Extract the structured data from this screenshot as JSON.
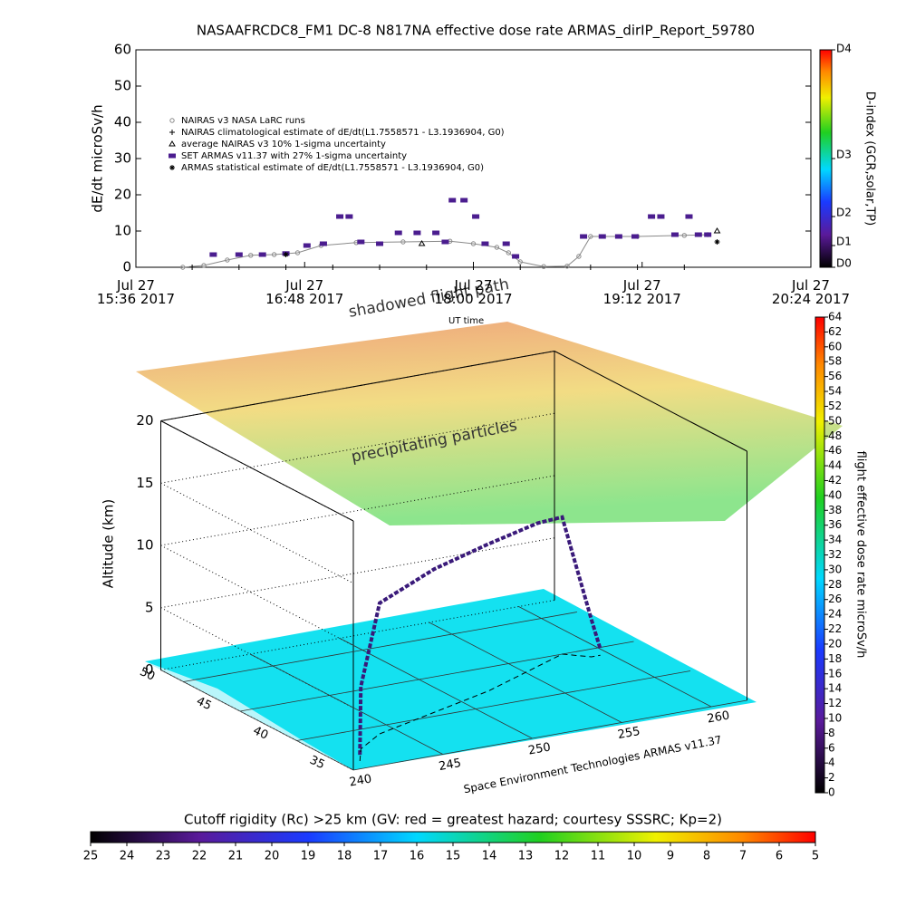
{
  "chart_data": [
    {
      "type": "scatter",
      "title": "NASAAFRCDC8_FM1 DC-8   N817NA effective dose rate ARMAS_dirIP_Report_59780",
      "ylabel": "dE/dt microSv/h",
      "xlim": [
        "2017-07-27T15:36",
        "2017-07-27T20:24"
      ],
      "xticks": [
        {
          "value": "2017-07-27T15:36",
          "label": "Jul 27\n15:36 2017"
        },
        {
          "value": "2017-07-27T16:48",
          "label": "Jul 27\n16:48 2017"
        },
        {
          "value": "2017-07-27T18:00",
          "label": "Jul 27\n18:00 2017"
        },
        {
          "value": "2017-07-27T19:12",
          "label": "Jul 27\n19:12 2017"
        },
        {
          "value": "2017-07-27T20:24",
          "label": "Jul 27\n20:24 2017"
        }
      ],
      "ylim": [
        0,
        60
      ],
      "yticks": [
        0,
        10,
        20,
        30,
        40,
        50,
        60
      ],
      "legend_position": "upper left",
      "series": [
        {
          "name": "NAIRAS v3 NASA LaRC runs",
          "color": "#8a8a8a",
          "marker": "circle",
          "x": [
            "2017-07-27T15:56",
            "2017-07-27T16:05",
            "2017-07-27T16:15",
            "2017-07-27T16:25",
            "2017-07-27T16:35",
            "2017-07-27T16:45",
            "2017-07-27T16:55",
            "2017-07-27T17:10",
            "2017-07-27T17:30",
            "2017-07-27T17:50",
            "2017-07-27T18:00",
            "2017-07-27T18:10",
            "2017-07-27T18:15",
            "2017-07-27T18:20",
            "2017-07-27T18:30",
            "2017-07-27T18:40",
            "2017-07-27T18:45",
            "2017-07-27T18:50",
            "2017-07-27T19:10",
            "2017-07-27T19:30",
            "2017-07-27T19:40"
          ],
          "values": [
            0,
            0.5,
            2,
            3.3,
            3.5,
            4,
            6,
            6.8,
            7,
            7.2,
            6.5,
            5.5,
            4,
            1.5,
            0.2,
            0.3,
            3,
            8.5,
            8.5,
            8.8,
            9
          ]
        },
        {
          "name": "NAIRAS climatological estimate of dE/dt(L1.7558571 - L3.1936904, G0)",
          "color": "#000000",
          "marker": "plus",
          "x": [
            "2017-07-27T16:00",
            "2017-07-27T16:20",
            "2017-07-27T16:40",
            "2017-07-27T17:00",
            "2017-07-27T17:20",
            "2017-07-27T17:40",
            "2017-07-27T18:00",
            "2017-07-27T18:20",
            "2017-07-27T18:50",
            "2017-07-27T19:10",
            "2017-07-27T19:30"
          ],
          "values": [
            0,
            0,
            0,
            0,
            0,
            0,
            0,
            0,
            0,
            0,
            0
          ]
        },
        {
          "name": "average NAIRAS v3 10% 1-sigma uncertainty",
          "color": "#000000",
          "marker": "triangle",
          "x": [
            "2017-07-27T17:38",
            "2017-07-27T19:44"
          ],
          "values": [
            6.5,
            10
          ]
        },
        {
          "name": "SET ARMAS v11.37 with 27% 1-sigma uncertainty",
          "color": "#4b1d8f",
          "marker": "square",
          "x": [
            "2017-07-27T16:09",
            "2017-07-27T16:20",
            "2017-07-27T16:30",
            "2017-07-27T16:40",
            "2017-07-27T16:49",
            "2017-07-27T16:56",
            "2017-07-27T17:03",
            "2017-07-27T17:07",
            "2017-07-27T17:12",
            "2017-07-27T17:20",
            "2017-07-27T17:28",
            "2017-07-27T17:36",
            "2017-07-27T17:44",
            "2017-07-27T17:48",
            "2017-07-27T17:51",
            "2017-07-27T17:56",
            "2017-07-27T18:01",
            "2017-07-27T18:05",
            "2017-07-27T18:14",
            "2017-07-27T18:18",
            "2017-07-27T18:47",
            "2017-07-27T18:55",
            "2017-07-27T19:02",
            "2017-07-27T19:09",
            "2017-07-27T19:16",
            "2017-07-27T19:20",
            "2017-07-27T19:26",
            "2017-07-27T19:32",
            "2017-07-27T19:36",
            "2017-07-27T19:40"
          ],
          "values": [
            3.5,
            3.5,
            3.5,
            3.8,
            6,
            6.5,
            14,
            14,
            7,
            6.5,
            9.5,
            9.5,
            9.5,
            7,
            18.5,
            18.5,
            14,
            6.5,
            6.5,
            3,
            8.5,
            8.5,
            8.5,
            8.5,
            14,
            14,
            9,
            14,
            9,
            9
          ]
        },
        {
          "name": "ARMAS statistical estimate of dE/dt(L1.7558571 - L3.1936904, G0)",
          "color": "#000000",
          "marker": "star",
          "x": [
            "2017-07-27T16:40",
            "2017-07-27T19:44"
          ],
          "values": [
            3.5,
            7
          ]
        }
      ],
      "colorbar": {
        "label": "D-index (GCR,solar,TP)",
        "ticks": [
          {
            "value": 0,
            "label": "D0"
          },
          {
            "value": 6,
            "label": "D1"
          },
          {
            "value": 14,
            "label": "D2"
          },
          {
            "value": 30,
            "label": "D3"
          },
          {
            "value": 60,
            "label": "D4"
          }
        ]
      }
    },
    {
      "type": "scatter3d",
      "zlabel": "Altitude (km)",
      "xlim": [
        240,
        262
      ],
      "xticks": [
        240,
        245,
        250,
        255,
        260
      ],
      "ylim": [
        35,
        52
      ],
      "yticks": [
        35,
        40,
        45,
        50
      ],
      "zlim": [
        0,
        20
      ],
      "zticks": [
        0,
        5,
        10,
        15,
        20
      ],
      "annotations": [
        "shadowed flight path",
        "UT time",
        "precipitating particles"
      ],
      "credit": "Space Environment Technologies ARMAS v11.37",
      "series": [
        {
          "name": "flight path",
          "color": "#3a1a7a",
          "x": [
            241,
            242,
            244,
            248,
            252,
            256,
            258,
            259,
            259.5
          ],
          "y": [
            36,
            37.5,
            39,
            40.5,
            42,
            44,
            45,
            44,
            44
          ],
          "z": [
            0.5,
            5,
            10.5,
            11.5,
            11.8,
            11.5,
            11,
            3,
            0.5
          ]
        }
      ],
      "colorbar": {
        "label": "flight effective dose rate microSv/h",
        "lim": [
          0,
          64
        ],
        "ticks": [
          0,
          2,
          4,
          6,
          8,
          10,
          12,
          14,
          16,
          18,
          20,
          22,
          24,
          26,
          28,
          30,
          32,
          34,
          36,
          38,
          40,
          42,
          44,
          46,
          48,
          50,
          52,
          54,
          56,
          58,
          60,
          62,
          64
        ]
      },
      "colorbar2": {
        "label": "Cutoff rigidity (Rc) >25 km (GV: red = greatest hazard; courtesy SSSRC; Kp=2)",
        "lim": [
          25,
          5
        ],
        "ticks": [
          25,
          24,
          23,
          22,
          21,
          20,
          19,
          18,
          17,
          16,
          15,
          14,
          13,
          12,
          11,
          10,
          9,
          8,
          7,
          6,
          5
        ]
      }
    }
  ]
}
